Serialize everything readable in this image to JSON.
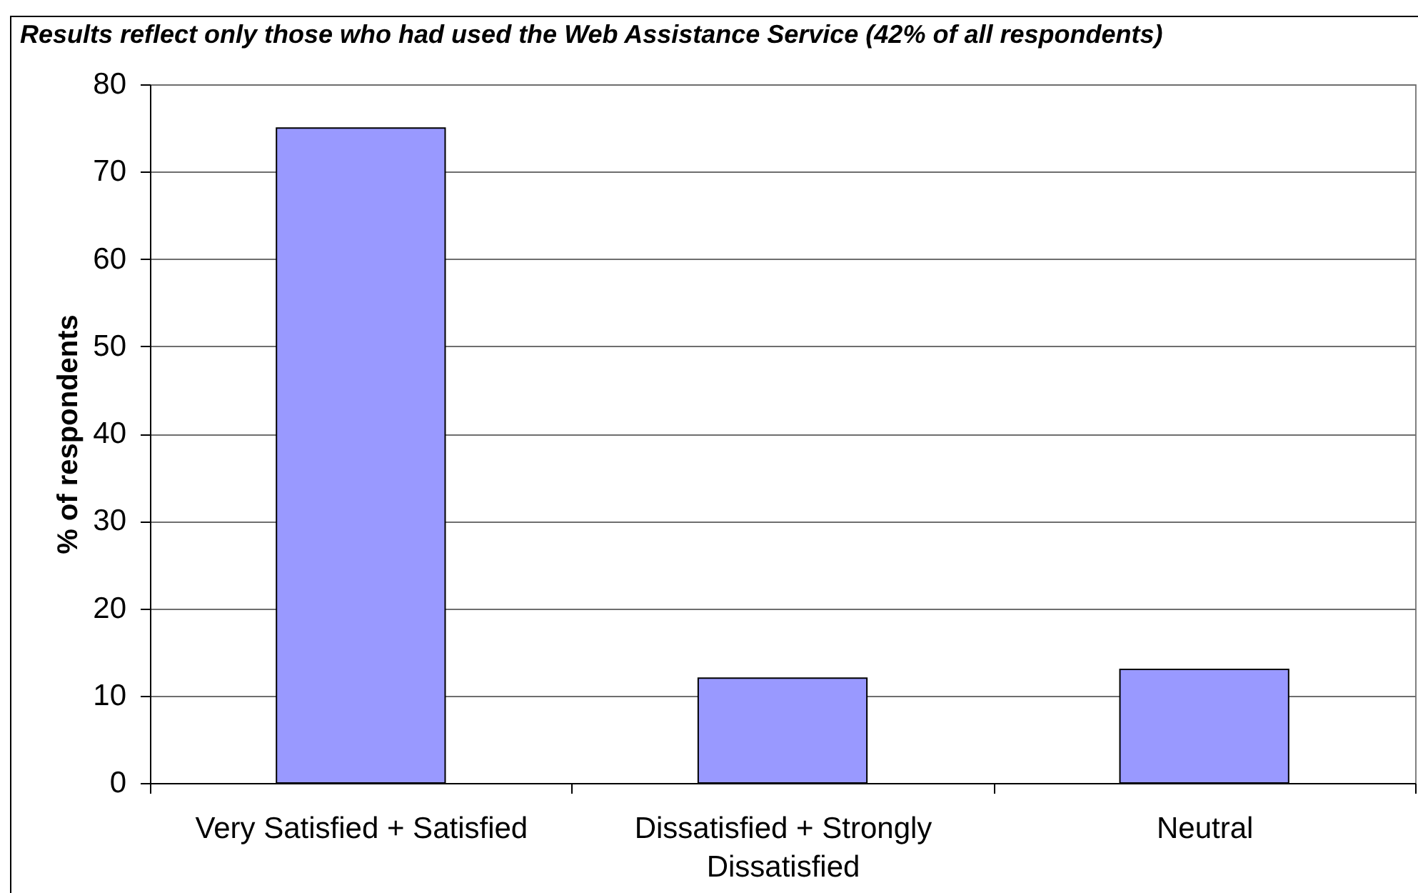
{
  "chart_data": {
    "type": "bar",
    "title": "Results reflect only those who had used the Web Assistance Service (42% of all respondents)",
    "ylabel": "% of respondents",
    "categories": [
      "Very Satisfied + Satisfied",
      "Dissatisfied + Strongly Dissatisfied",
      "Neutral"
    ],
    "values": [
      75,
      12,
      13
    ],
    "color": "#9999ff",
    "ylim": [
      0,
      80
    ],
    "yticks": [
      0,
      10,
      20,
      30,
      40,
      50,
      60,
      70,
      80
    ],
    "grid": "y"
  }
}
